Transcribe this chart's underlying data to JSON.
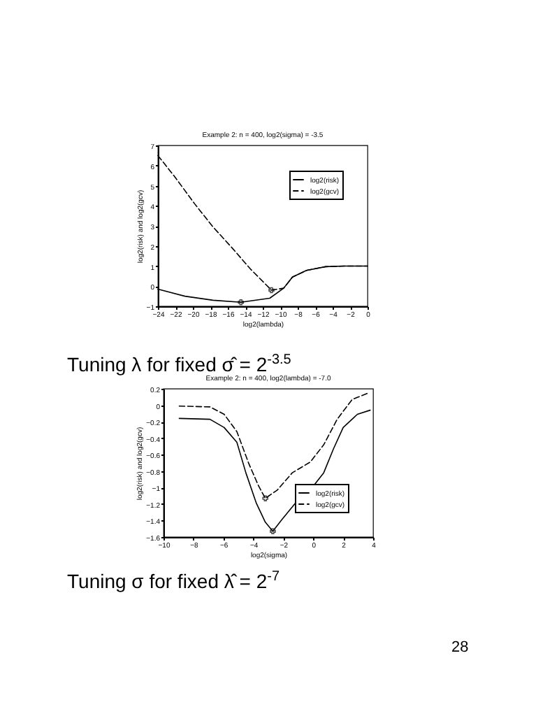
{
  "chart_data": [
    {
      "type": "line",
      "title": "Example 2: n = 400, log2(sigma) = -3.5",
      "xlabel": "log2(lambda)",
      "ylabel": "log2(risk) and log2(gcv)",
      "xlim": [
        -24,
        0
      ],
      "xticks": [
        -24,
        -22,
        -20,
        -18,
        -16,
        -14,
        -12,
        -10,
        -8,
        -6,
        -4,
        -2,
        0
      ],
      "ylim": [
        -1,
        7
      ],
      "yticks": [
        -1,
        0,
        1,
        2,
        3,
        4,
        5,
        6,
        7
      ],
      "legend": "top right",
      "series": [
        {
          "name": "log2(risk)",
          "color": "#000000",
          "line_style": "solid",
          "x": [
            -24,
            -20.9,
            -17.7,
            -14.5,
            -11.2,
            -9.6,
            -8.6,
            -7,
            -4.8,
            -2.7,
            0
          ],
          "values": [
            -0.15,
            -0.5,
            -0.7,
            -0.8,
            -0.6,
            -0.1,
            0.45,
            0.78,
            0.97,
            1.0,
            1.0
          ]
        },
        {
          "name": "log2(gcv)",
          "color": "#000000",
          "line_style": "dashed",
          "x": [
            -24,
            -22,
            -19.8,
            -17.7,
            -15.5,
            -13.4,
            -11.8,
            -11,
            -9.6,
            -8.6,
            -7,
            -4.8,
            -2.7,
            0
          ],
          "values": [
            6.5,
            5.4,
            4.1,
            2.95,
            1.9,
            0.85,
            0.15,
            -0.2,
            -0.1,
            0.45,
            0.78,
            0.97,
            1.0,
            1.0
          ]
        },
        {
          "type": "scatter",
          "color": "#000000",
          "marker": "cross",
          "x": [
            -14.5,
            -11
          ],
          "values": [
            -0.8,
            -0.2
          ]
        }
      ],
      "annotations": [
        "Tuning λ for fixed σ̂ = 2$^{-3.5}$"
      ]
    },
    {
      "type": "line",
      "title": "Example 2: n = 400, log2(lambda) = -7.0",
      "xlabel": "log2(sigma)",
      "ylabel": "log2(risk) and log2(gcv)",
      "xlim": [
        -10,
        4
      ],
      "xticks": [
        -10,
        -8,
        -6,
        -4,
        -2,
        0,
        2,
        4
      ],
      "ylim": [
        -1.6,
        0.2
      ],
      "yticks": [
        -1.6,
        -1.4,
        -1.2,
        -1,
        -0.8,
        -0.6,
        -0.4,
        -0.2,
        0,
        0.2
      ],
      "legend": "bottom right",
      "series": [
        {
          "name": "log2(risk)",
          "color": "#000000",
          "line_style": "solid",
          "x": [
            -8.95,
            -6.9,
            -5.95,
            -5.1,
            -4.5,
            -3.8,
            -3.2,
            -2.7,
            -2.1,
            -1.2,
            -0.2,
            0.7,
            1.35,
            2,
            2.95,
            3.8
          ],
          "values": [
            -0.16,
            -0.17,
            -0.27,
            -0.45,
            -0.82,
            -1.19,
            -1.42,
            -1.53,
            -1.39,
            -1.19,
            -1.03,
            -0.82,
            -0.53,
            -0.27,
            -0.11,
            -0.06
          ]
        },
        {
          "name": "log2(gcv)",
          "color": "#000000",
          "line_style": "dashed",
          "x": [
            -8.95,
            -6.9,
            -5.95,
            -5.1,
            -4.3,
            -3.65,
            -3.2,
            -2.4,
            -1.4,
            -0.2,
            0.7,
            1.6,
            2.6,
            3.7
          ],
          "values": [
            -0.01,
            -0.02,
            -0.11,
            -0.32,
            -0.71,
            -0.98,
            -1.13,
            -1.03,
            -0.82,
            -0.69,
            -0.48,
            -0.17,
            0.07,
            0.15
          ]
        },
        {
          "type": "scatter",
          "color": "#000000",
          "marker": "cross",
          "x": [
            -2.7,
            -3.2
          ],
          "values": [
            -1.53,
            -1.13
          ]
        }
      ],
      "annotations": [
        "Tuning σ for fixed λ̂ = 2$^{-7}$",
        "28"
      ]
    }
  ]
}
